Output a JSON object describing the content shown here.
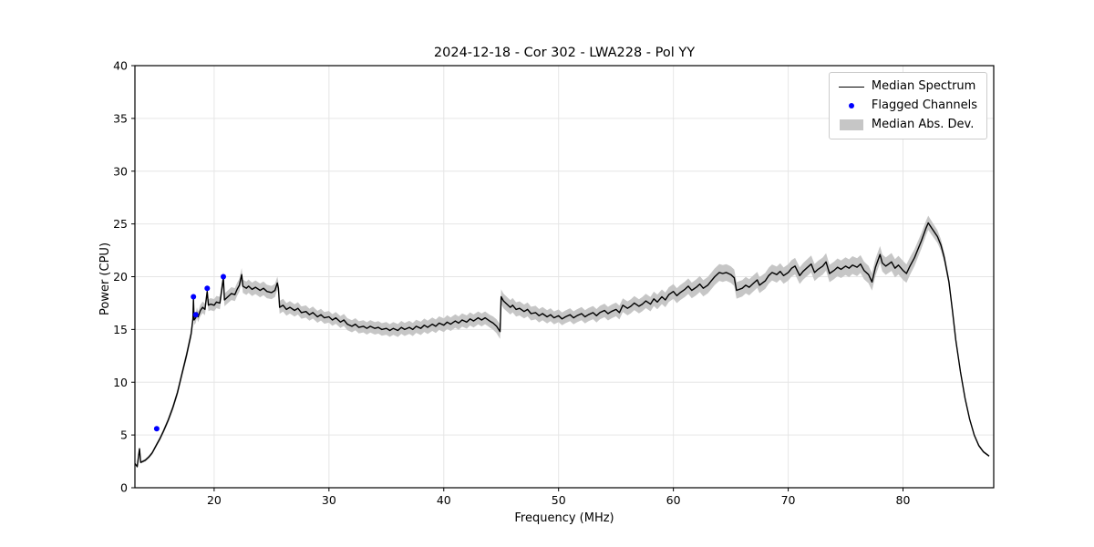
{
  "figure": {
    "title": "2024-12-18 - Cor 302 - LWA228 - Pol YY",
    "xlabel": "Frequency (MHz)",
    "ylabel": "Power (CPU)"
  },
  "legend": {
    "items": [
      {
        "label": "Median Spectrum",
        "swatch": "line",
        "color": "#000000"
      },
      {
        "label": "Flagged Channels",
        "swatch": "dot",
        "color": "#0000ff"
      },
      {
        "label": "Median Abs. Dev.",
        "swatch": "patch",
        "color": "#c6c6c6"
      }
    ]
  },
  "chart_data": {
    "type": "line",
    "title": "2024-12-18 - Cor 302 - LWA228 - Pol YY",
    "xlabel": "Frequency (MHz)",
    "ylabel": "Power (CPU)",
    "xlim": [
      13.1,
      87.9
    ],
    "ylim": [
      0,
      40
    ],
    "x_ticks": [
      20,
      30,
      40,
      50,
      60,
      70,
      80
    ],
    "y_ticks": [
      0,
      5,
      10,
      15,
      20,
      25,
      30,
      35,
      40
    ],
    "grid": true,
    "legend_position": "upper right",
    "colors": {
      "line": "#000000",
      "flagged": "#0000ff",
      "band": "#c6c6c6"
    },
    "series": [
      {
        "name": "Median Spectrum",
        "points": [
          [
            13.1,
            2.3
          ],
          [
            13.3,
            2.0
          ],
          [
            13.5,
            3.7
          ],
          [
            13.6,
            2.4
          ],
          [
            14.0,
            2.6
          ],
          [
            14.3,
            2.9
          ],
          [
            14.6,
            3.3
          ],
          [
            15.0,
            4.1
          ],
          [
            15.3,
            4.7
          ],
          [
            15.6,
            5.4
          ],
          [
            16.0,
            6.4
          ],
          [
            16.4,
            7.6
          ],
          [
            16.8,
            9.0
          ],
          [
            17.2,
            10.8
          ],
          [
            17.6,
            12.6
          ],
          [
            18.0,
            14.6
          ],
          [
            18.15,
            16.0
          ],
          [
            18.2,
            17.9
          ],
          [
            18.25,
            15.9
          ],
          [
            18.4,
            16.1
          ],
          [
            18.5,
            16.6
          ],
          [
            18.6,
            16.2
          ],
          [
            18.8,
            16.8
          ],
          [
            19.0,
            17.1
          ],
          [
            19.2,
            16.9
          ],
          [
            19.4,
            18.6
          ],
          [
            19.5,
            17.3
          ],
          [
            19.7,
            17.4
          ],
          [
            20.0,
            17.3
          ],
          [
            20.2,
            17.6
          ],
          [
            20.5,
            17.5
          ],
          [
            20.8,
            19.9
          ],
          [
            20.9,
            17.8
          ],
          [
            21.2,
            18.1
          ],
          [
            21.5,
            18.4
          ],
          [
            21.8,
            18.3
          ],
          [
            22.0,
            18.8
          ],
          [
            22.2,
            19.2
          ],
          [
            22.4,
            20.2
          ],
          [
            22.5,
            19.1
          ],
          [
            22.8,
            18.9
          ],
          [
            23.0,
            19.1
          ],
          [
            23.3,
            18.8
          ],
          [
            23.6,
            19.0
          ],
          [
            24.0,
            18.7
          ],
          [
            24.3,
            18.9
          ],
          [
            24.6,
            18.6
          ],
          [
            25.0,
            18.5
          ],
          [
            25.3,
            18.7
          ],
          [
            25.5,
            19.4
          ],
          [
            25.6,
            18.9
          ],
          [
            25.7,
            17.1
          ],
          [
            26.0,
            17.3
          ],
          [
            26.3,
            16.9
          ],
          [
            26.6,
            17.1
          ],
          [
            27.0,
            16.8
          ],
          [
            27.3,
            17.0
          ],
          [
            27.6,
            16.6
          ],
          [
            28.0,
            16.7
          ],
          [
            28.3,
            16.4
          ],
          [
            28.6,
            16.6
          ],
          [
            29.0,
            16.2
          ],
          [
            29.3,
            16.4
          ],
          [
            29.6,
            16.1
          ],
          [
            30.0,
            16.2
          ],
          [
            30.3,
            15.9
          ],
          [
            30.6,
            16.1
          ],
          [
            31.0,
            15.7
          ],
          [
            31.3,
            15.9
          ],
          [
            31.6,
            15.5
          ],
          [
            32.0,
            15.3
          ],
          [
            32.3,
            15.5
          ],
          [
            32.6,
            15.2
          ],
          [
            33.0,
            15.3
          ],
          [
            33.3,
            15.1
          ],
          [
            33.6,
            15.3
          ],
          [
            34.0,
            15.1
          ],
          [
            34.3,
            15.2
          ],
          [
            34.6,
            15.0
          ],
          [
            35.0,
            15.1
          ],
          [
            35.3,
            14.9
          ],
          [
            35.6,
            15.1
          ],
          [
            36.0,
            14.9
          ],
          [
            36.3,
            15.2
          ],
          [
            36.6,
            15.0
          ],
          [
            37.0,
            15.2
          ],
          [
            37.3,
            15.0
          ],
          [
            37.6,
            15.3
          ],
          [
            38.0,
            15.1
          ],
          [
            38.3,
            15.4
          ],
          [
            38.6,
            15.2
          ],
          [
            39.0,
            15.5
          ],
          [
            39.3,
            15.3
          ],
          [
            39.6,
            15.6
          ],
          [
            40.0,
            15.4
          ],
          [
            40.3,
            15.7
          ],
          [
            40.6,
            15.5
          ],
          [
            41.0,
            15.8
          ],
          [
            41.3,
            15.6
          ],
          [
            41.6,
            15.9
          ],
          [
            42.0,
            15.7
          ],
          [
            42.3,
            16.0
          ],
          [
            42.6,
            15.8
          ],
          [
            43.0,
            16.1
          ],
          [
            43.3,
            15.9
          ],
          [
            43.6,
            16.1
          ],
          [
            44.0,
            15.8
          ],
          [
            44.3,
            15.6
          ],
          [
            44.6,
            15.3
          ],
          [
            44.9,
            14.8
          ],
          [
            45.0,
            18.1
          ],
          [
            45.2,
            17.7
          ],
          [
            45.5,
            17.4
          ],
          [
            45.8,
            17.1
          ],
          [
            46.0,
            17.3
          ],
          [
            46.3,
            16.9
          ],
          [
            46.6,
            17.0
          ],
          [
            47.0,
            16.7
          ],
          [
            47.3,
            16.9
          ],
          [
            47.6,
            16.5
          ],
          [
            48.0,
            16.6
          ],
          [
            48.3,
            16.3
          ],
          [
            48.6,
            16.5
          ],
          [
            49.0,
            16.2
          ],
          [
            49.3,
            16.4
          ],
          [
            49.6,
            16.1
          ],
          [
            50.0,
            16.3
          ],
          [
            50.3,
            16.0
          ],
          [
            50.6,
            16.2
          ],
          [
            51.0,
            16.4
          ],
          [
            51.3,
            16.1
          ],
          [
            51.6,
            16.3
          ],
          [
            52.0,
            16.5
          ],
          [
            52.3,
            16.2
          ],
          [
            52.6,
            16.4
          ],
          [
            53.0,
            16.6
          ],
          [
            53.3,
            16.3
          ],
          [
            53.6,
            16.6
          ],
          [
            54.0,
            16.8
          ],
          [
            54.3,
            16.5
          ],
          [
            54.6,
            16.7
          ],
          [
            55.0,
            16.9
          ],
          [
            55.3,
            16.6
          ],
          [
            55.6,
            17.3
          ],
          [
            56.0,
            17.0
          ],
          [
            56.3,
            17.2
          ],
          [
            56.6,
            17.5
          ],
          [
            57.0,
            17.2
          ],
          [
            57.3,
            17.4
          ],
          [
            57.6,
            17.7
          ],
          [
            58.0,
            17.4
          ],
          [
            58.3,
            17.9
          ],
          [
            58.6,
            17.6
          ],
          [
            59.0,
            18.1
          ],
          [
            59.3,
            17.8
          ],
          [
            59.6,
            18.3
          ],
          [
            60.0,
            18.6
          ],
          [
            60.3,
            18.2
          ],
          [
            60.6,
            18.5
          ],
          [
            61.0,
            18.8
          ],
          [
            61.3,
            19.1
          ],
          [
            61.6,
            18.7
          ],
          [
            62.0,
            19.0
          ],
          [
            62.3,
            19.3
          ],
          [
            62.6,
            18.9
          ],
          [
            63.0,
            19.2
          ],
          [
            63.3,
            19.6
          ],
          [
            63.6,
            20.0
          ],
          [
            64.0,
            20.4
          ],
          [
            64.3,
            20.3
          ],
          [
            64.6,
            20.4
          ],
          [
            65.0,
            20.2
          ],
          [
            65.3,
            19.9
          ],
          [
            65.5,
            18.7
          ],
          [
            66.0,
            18.9
          ],
          [
            66.3,
            19.2
          ],
          [
            66.6,
            19.0
          ],
          [
            67.0,
            19.4
          ],
          [
            67.3,
            19.7
          ],
          [
            67.5,
            19.2
          ],
          [
            68.0,
            19.6
          ],
          [
            68.3,
            20.1
          ],
          [
            68.6,
            20.4
          ],
          [
            69.0,
            20.2
          ],
          [
            69.3,
            20.5
          ],
          [
            69.6,
            20.1
          ],
          [
            70.0,
            20.4
          ],
          [
            70.3,
            20.8
          ],
          [
            70.6,
            21.0
          ],
          [
            71.0,
            20.1
          ],
          [
            71.3,
            20.5
          ],
          [
            71.6,
            20.8
          ],
          [
            72.0,
            21.2
          ],
          [
            72.3,
            20.4
          ],
          [
            72.6,
            20.7
          ],
          [
            73.0,
            21.0
          ],
          [
            73.3,
            21.4
          ],
          [
            73.6,
            20.3
          ],
          [
            74.0,
            20.6
          ],
          [
            74.3,
            20.9
          ],
          [
            74.6,
            20.7
          ],
          [
            75.0,
            21.0
          ],
          [
            75.3,
            20.8
          ],
          [
            75.6,
            21.1
          ],
          [
            76.0,
            20.9
          ],
          [
            76.3,
            21.2
          ],
          [
            76.6,
            20.6
          ],
          [
            77.0,
            20.2
          ],
          [
            77.3,
            19.5
          ],
          [
            77.6,
            20.9
          ],
          [
            78.0,
            22.1
          ],
          [
            78.2,
            21.3
          ],
          [
            78.5,
            21.0
          ],
          [
            79.0,
            21.4
          ],
          [
            79.3,
            20.8
          ],
          [
            79.6,
            21.1
          ],
          [
            80.0,
            20.6
          ],
          [
            80.3,
            20.3
          ],
          [
            80.6,
            21.0
          ],
          [
            81.0,
            21.8
          ],
          [
            81.3,
            22.6
          ],
          [
            81.6,
            23.4
          ],
          [
            82.0,
            24.6
          ],
          [
            82.2,
            25.1
          ],
          [
            82.5,
            24.6
          ],
          [
            83.0,
            23.8
          ],
          [
            83.3,
            23.0
          ],
          [
            83.6,
            21.8
          ],
          [
            84.0,
            19.5
          ],
          [
            84.3,
            16.8
          ],
          [
            84.6,
            14.0
          ],
          [
            85.0,
            11.0
          ],
          [
            85.4,
            8.5
          ],
          [
            85.8,
            6.5
          ],
          [
            86.2,
            5.0
          ],
          [
            86.6,
            4.0
          ],
          [
            87.0,
            3.4
          ],
          [
            87.5,
            3.0
          ]
        ]
      },
      {
        "name": "Flagged Channels",
        "points": [
          [
            15.0,
            5.6
          ],
          [
            18.2,
            18.1
          ],
          [
            18.4,
            16.4
          ],
          [
            19.4,
            18.9
          ],
          [
            20.8,
            20.0
          ]
        ]
      },
      {
        "name": "Median Abs. Dev. half-width",
        "points": [
          [
            13.1,
            0.1
          ],
          [
            15.0,
            0.18
          ],
          [
            17.0,
            0.35
          ],
          [
            19.0,
            0.55
          ],
          [
            21.0,
            0.6
          ],
          [
            24.0,
            0.65
          ],
          [
            26.0,
            0.6
          ],
          [
            30.0,
            0.55
          ],
          [
            35.0,
            0.6
          ],
          [
            40.0,
            0.65
          ],
          [
            44.0,
            0.6
          ],
          [
            45.0,
            0.7
          ],
          [
            50.0,
            0.6
          ],
          [
            55.0,
            0.65
          ],
          [
            60.0,
            0.7
          ],
          [
            64.0,
            0.8
          ],
          [
            68.0,
            0.75
          ],
          [
            72.0,
            0.8
          ],
          [
            76.0,
            0.85
          ],
          [
            78.0,
            0.8
          ],
          [
            80.0,
            0.9
          ],
          [
            82.0,
            0.7
          ],
          [
            83.0,
            0.6
          ],
          [
            84.0,
            0.4
          ],
          [
            85.0,
            0.25
          ],
          [
            86.0,
            0.15
          ],
          [
            87.5,
            0.1
          ]
        ]
      }
    ]
  }
}
